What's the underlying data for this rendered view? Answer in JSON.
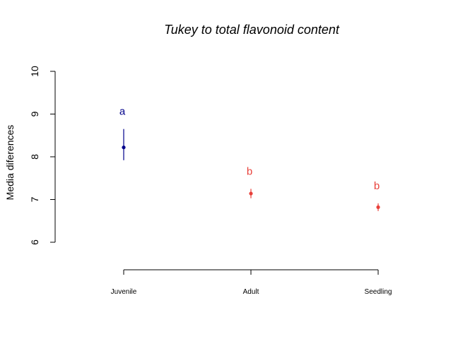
{
  "chart_data": {
    "type": "scatter",
    "title": "Tukey to total flavonoid content",
    "ylabel": "Media diferences",
    "xlabel": "",
    "ylim": [
      6,
      10
    ],
    "yticks": [
      6,
      7,
      8,
      9,
      10
    ],
    "grid": false,
    "categories": [
      "Juvenile",
      "Adult",
      "Seedling"
    ],
    "points": [
      {
        "category": "Juvenile",
        "mean": 8.22,
        "lower": 7.92,
        "upper": 8.65,
        "letter": "a",
        "color": "#00008b"
      },
      {
        "category": "Adult",
        "mean": 7.14,
        "lower": 7.03,
        "upper": 7.25,
        "letter": "b",
        "color": "#e8403a"
      },
      {
        "category": "Seedling",
        "mean": 6.82,
        "lower": 6.73,
        "upper": 6.91,
        "letter": "b",
        "color": "#e8403a"
      }
    ]
  }
}
